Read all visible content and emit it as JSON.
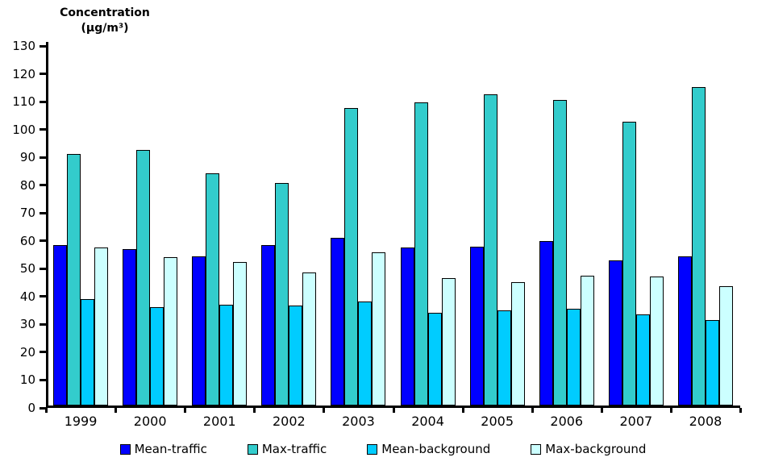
{
  "chart_data": {
    "type": "bar",
    "title": "Concentration (µg/m³)",
    "title_lines": [
      "Concentration",
      "(µg/m³)"
    ],
    "categories": [
      "1999",
      "2000",
      "2001",
      "2002",
      "2003",
      "2004",
      "2005",
      "2006",
      "2007",
      "2008"
    ],
    "series": [
      {
        "name": "Mean-traffic",
        "color": "#0000FF",
        "values": [
          58,
          56.5,
          54,
          58,
          60.5,
          57,
          57.5,
          59.5,
          52.5,
          54
        ]
      },
      {
        "name": "Max-traffic",
        "color": "#33CCCC",
        "values": [
          91,
          92.5,
          84,
          80.5,
          107.5,
          109.5,
          112.5,
          110.5,
          102.5,
          115
        ]
      },
      {
        "name": "Mean-background",
        "color": "#00CCFF",
        "values": [
          38.5,
          35.5,
          36.5,
          36,
          37.5,
          33.5,
          34.5,
          35,
          33,
          31
        ]
      },
      {
        "name": "Max-background",
        "color": "#CCFFFF",
        "values": [
          57,
          53.5,
          52,
          48,
          55.5,
          46,
          44.5,
          47,
          46.5,
          43
        ]
      }
    ],
    "ylim": [
      0,
      130
    ],
    "ytick_step": 10,
    "ytick_labels": [
      "0",
      "10",
      "20",
      "30",
      "40",
      "50",
      "60",
      "70",
      "80",
      "90",
      "100",
      "110",
      "120",
      "130"
    ],
    "grid": false,
    "legend_position": "bottom",
    "axis_color": "#000000",
    "bar_border_color": "#000000",
    "background_color": "#FFFFFF"
  }
}
